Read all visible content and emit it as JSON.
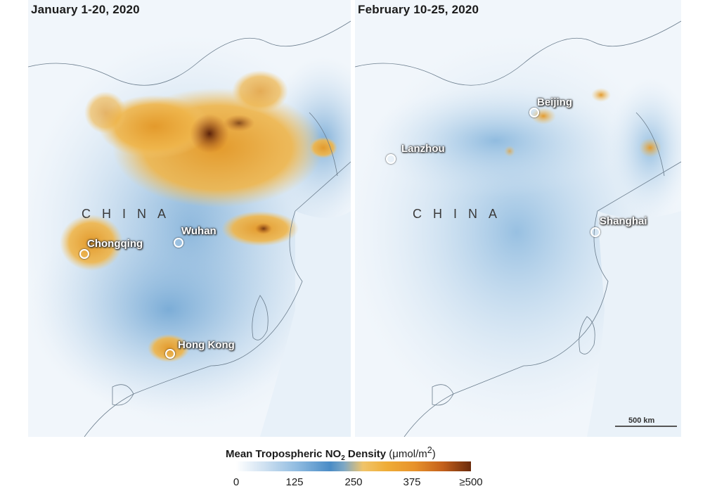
{
  "panels": {
    "left": {
      "title": "January 1-20, 2020",
      "country": "CHINA",
      "cities": [
        "Wuhan",
        "Chongqing",
        "Hong Kong"
      ]
    },
    "right": {
      "title": "February 10-25, 2020",
      "country": "CHINA",
      "cities": [
        "Beijing",
        "Lanzhou",
        "Shanghai"
      ],
      "scale": "500 km"
    }
  },
  "legend": {
    "title_prefix": "Mean Tropospheric NO",
    "title_sub": "2",
    "title_suffix": " Density ",
    "unit_prefix": "(μmol/m",
    "unit_sup": "2",
    "unit_suffix": ")",
    "ticks": [
      "0",
      "125",
      "250",
      "375",
      "≥500"
    ],
    "colors": [
      "#ffffff",
      "#8fbbe0",
      "#4a8cc6",
      "#efad37",
      "#e7922b",
      "#6a2a0b"
    ]
  }
}
